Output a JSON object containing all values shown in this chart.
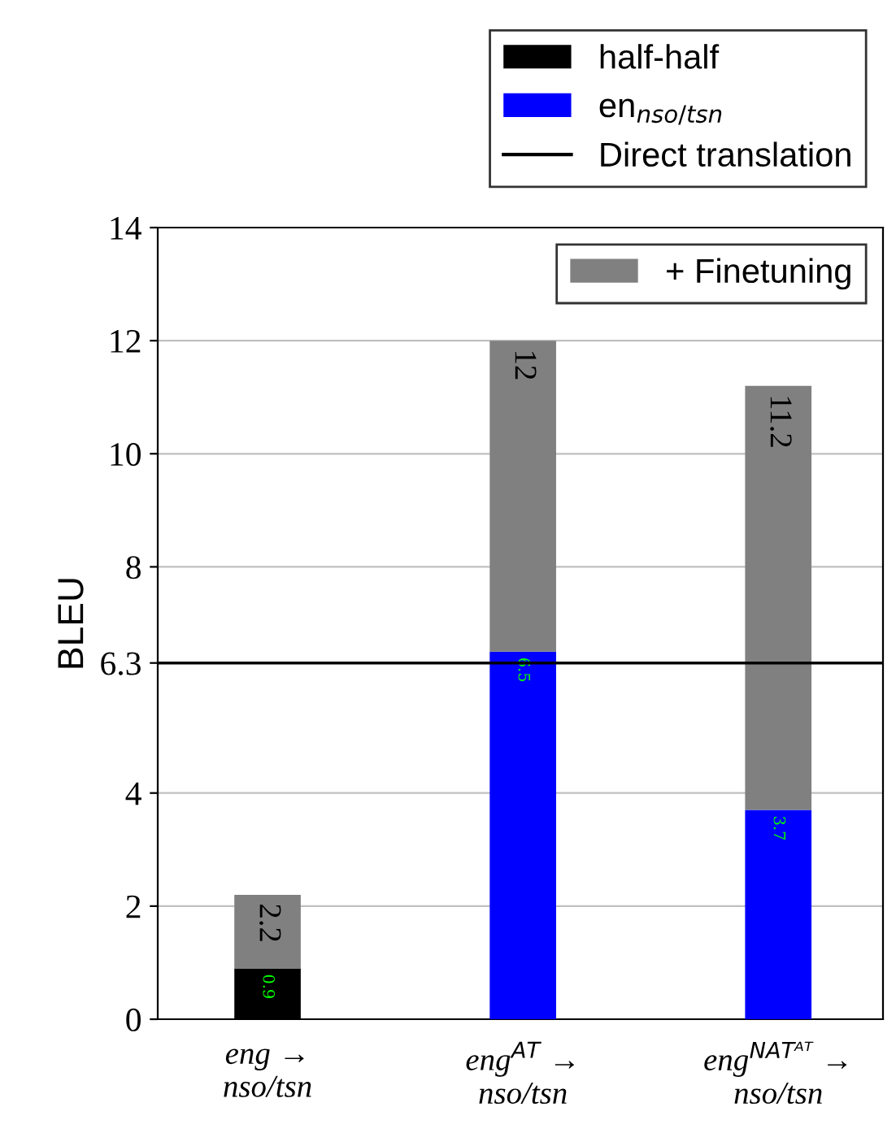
{
  "chart_data": {
    "type": "bar",
    "stacked": true,
    "ylabel": "BLEU",
    "categories": [
      "eng →\nnso/tsn",
      "eng$^{AT}$ →\nnso/tsn",
      "eng$^{NATᴬᵀ}$ →\nnso/tsn"
    ],
    "series": [
      {
        "name": "half-half",
        "color": "#000000",
        "values": [
          0.9,
          null,
          null
        ],
        "value_labels": [
          "0.9",
          null,
          null
        ]
      },
      {
        "name": "en$_{nso/tsn}$",
        "color": "#0000ff",
        "values": [
          null,
          6.5,
          3.7
        ],
        "value_labels": [
          null,
          "6.5",
          "3.7"
        ]
      },
      {
        "name": "+ Finetuning",
        "color": "#808080",
        "values": [
          1.3,
          5.5,
          7.5
        ]
      }
    ],
    "totals": [
      "2.2",
      "12",
      "11.2"
    ],
    "ref_lines": [
      {
        "axis": "y",
        "value": 6.3,
        "label": "Direct translation",
        "color": "#000000",
        "line_style": "solid"
      }
    ],
    "ylim": [
      0,
      14
    ],
    "yticks": [
      0,
      2,
      4,
      6.3,
      8,
      10,
      12,
      14
    ],
    "grid": "y",
    "legend": "top right"
  }
}
